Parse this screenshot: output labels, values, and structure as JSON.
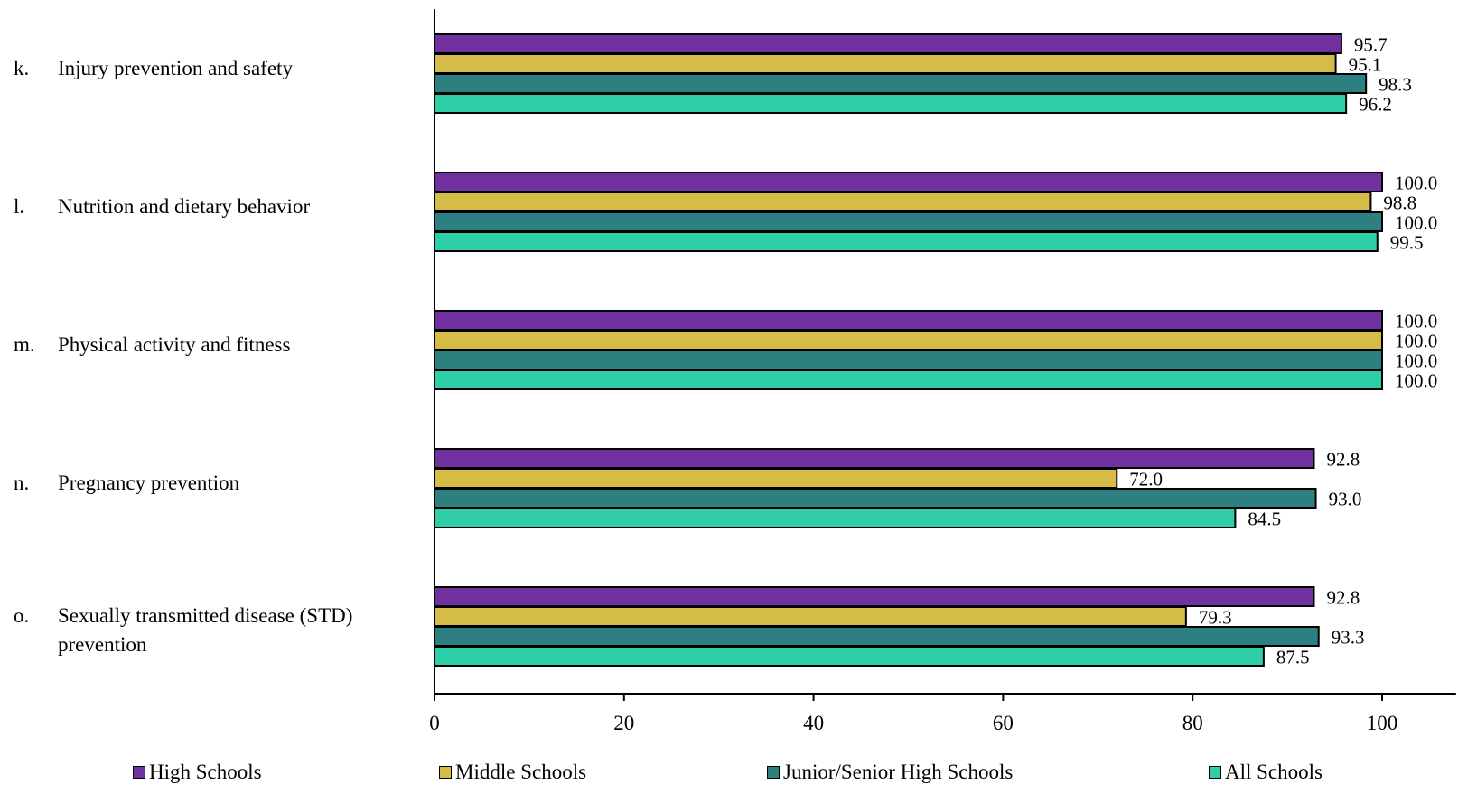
{
  "chart_data": {
    "type": "bar",
    "orientation": "horizontal",
    "categories": [
      {
        "letter": "k.",
        "lines": [
          "Injury prevention and safety"
        ]
      },
      {
        "letter": "l.",
        "lines": [
          "Nutrition and dietary behavior"
        ]
      },
      {
        "letter": "m.",
        "lines": [
          "Physical activity and fitness"
        ]
      },
      {
        "letter": "n.",
        "lines": [
          "Pregnancy prevention"
        ]
      },
      {
        "letter": "o.",
        "lines": [
          "Sexually transmitted disease (STD)",
          "prevention"
        ]
      }
    ],
    "series": [
      {
        "name": "High Schools",
        "color": "#7030A0",
        "values": [
          95.7,
          100.0,
          100.0,
          92.8,
          92.8
        ]
      },
      {
        "name": "Middle Schools",
        "color": "#D4BC46",
        "values": [
          95.1,
          98.8,
          100.0,
          72.0,
          79.3
        ]
      },
      {
        "name": "Junior/Senior High Schools",
        "color": "#2E7F7F",
        "values": [
          98.3,
          100.0,
          100.0,
          93.0,
          93.3
        ]
      },
      {
        "name": "All Schools",
        "color": "#2ECFA8",
        "values": [
          96.2,
          99.5,
          100.0,
          84.5,
          87.5
        ]
      }
    ],
    "xlim": [
      0,
      107.8
    ],
    "xticks": [
      "0",
      "20",
      "40",
      "60",
      "80",
      "100"
    ],
    "value_labels": true,
    "legend_position": "bottom",
    "grid": false
  }
}
